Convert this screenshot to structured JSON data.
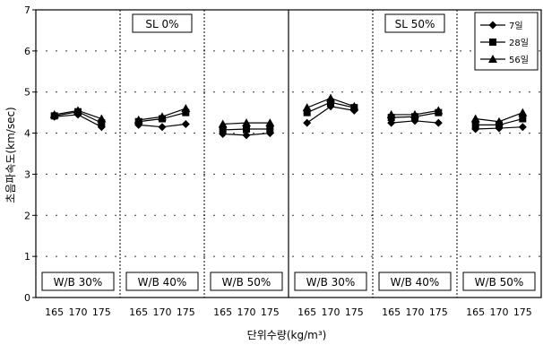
{
  "chart_data": {
    "type": "line",
    "ylabel": "초음파속도(km/sec)",
    "xlabel": "단위수량(kg/m³)",
    "ylim": [
      0,
      7
    ],
    "yticks": [
      0,
      1,
      2,
      3,
      4,
      5,
      6,
      7
    ],
    "x_categories": [
      "165",
      "170",
      "175"
    ],
    "grid": "dotted horizontal",
    "legend": {
      "placement": "top-right",
      "entries": [
        {
          "name": "7일",
          "marker": "diamond"
        },
        {
          "name": "28일",
          "marker": "square"
        },
        {
          "name": "56일",
          "marker": "triangle"
        }
      ]
    },
    "groups": [
      {
        "label": "SL 0%",
        "panel_labels": [
          "W/B 30%",
          "W/B 40%",
          "W/B 50%"
        ]
      },
      {
        "label": "SL 50%",
        "panel_labels": [
          "W/B 30%",
          "W/B 40%",
          "W/B 50%"
        ]
      }
    ],
    "panels": [
      {
        "group": 0,
        "label": "W/B 30%",
        "series": [
          {
            "name": "7일",
            "values": [
              4.4,
              4.45,
              4.15
            ]
          },
          {
            "name": "28일",
            "values": [
              4.42,
              4.52,
              4.25
            ]
          },
          {
            "name": "56일",
            "values": [
              4.45,
              4.55,
              4.35
            ]
          }
        ]
      },
      {
        "group": 0,
        "label": "W/B 40%",
        "series": [
          {
            "name": "7일",
            "values": [
              4.2,
              4.15,
              4.22
            ]
          },
          {
            "name": "28일",
            "values": [
              4.28,
              4.35,
              4.5
            ]
          },
          {
            "name": "56일",
            "values": [
              4.32,
              4.4,
              4.6
            ]
          }
        ]
      },
      {
        "group": 0,
        "label": "W/B 50%",
        "series": [
          {
            "name": "7일",
            "values": [
              3.98,
              3.95,
              4.0
            ]
          },
          {
            "name": "28일",
            "values": [
              4.08,
              4.1,
              4.1
            ]
          },
          {
            "name": "56일",
            "values": [
              4.22,
              4.25,
              4.25
            ]
          }
        ]
      },
      {
        "group": 1,
        "label": "W/B 30%",
        "series": [
          {
            "name": "7일",
            "values": [
              4.25,
              4.65,
              4.55
            ]
          },
          {
            "name": "28일",
            "values": [
              4.5,
              4.75,
              4.62
            ]
          },
          {
            "name": "56일",
            "values": [
              4.62,
              4.85,
              4.65
            ]
          }
        ]
      },
      {
        "group": 1,
        "label": "W/B 40%",
        "series": [
          {
            "name": "7일",
            "values": [
              4.25,
              4.3,
              4.25
            ]
          },
          {
            "name": "28일",
            "values": [
              4.38,
              4.4,
              4.5
            ]
          },
          {
            "name": "56일",
            "values": [
              4.45,
              4.45,
              4.55
            ]
          }
        ]
      },
      {
        "group": 1,
        "label": "W/B 50%",
        "series": [
          {
            "name": "7일",
            "values": [
              4.1,
              4.12,
              4.15
            ]
          },
          {
            "name": "28일",
            "values": [
              4.2,
              4.2,
              4.35
            ]
          },
          {
            "name": "56일",
            "values": [
              4.35,
              4.28,
              4.5
            ]
          }
        ]
      }
    ]
  }
}
